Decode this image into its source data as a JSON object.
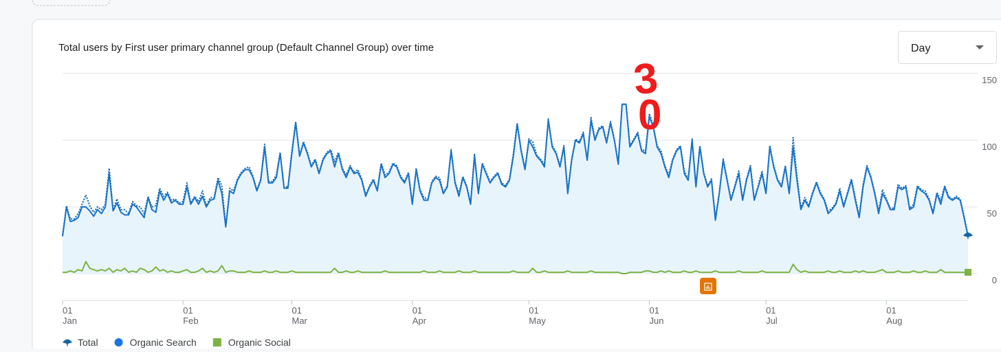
{
  "chart_data": {
    "type": "line",
    "title": "Total users by First user primary channel group (Default Channel Group) over time",
    "dropdown": "Day",
    "annotations": [
      "3",
      "0"
    ],
    "xlim": [
      0,
      233
    ],
    "ylim": [
      0,
      150
    ],
    "yticks": [
      0,
      50,
      100,
      150
    ],
    "grid": true,
    "xticks": [
      {
        "value": 0,
        "label": "01",
        "sublabel": "Jan"
      },
      {
        "value": 31,
        "label": "01",
        "sublabel": "Feb"
      },
      {
        "value": 59,
        "label": "01",
        "sublabel": "Mar"
      },
      {
        "value": 90,
        "label": "01",
        "sublabel": "Apr"
      },
      {
        "value": 120,
        "label": "01",
        "sublabel": "May"
      },
      {
        "value": 151,
        "label": "01",
        "sublabel": "Jun"
      },
      {
        "value": 181,
        "label": "01",
        "sublabel": "Jul"
      },
      {
        "value": 212,
        "label": "01",
        "sublabel": "Aug"
      }
    ],
    "x": [
      0,
      1,
      2,
      3,
      4,
      5,
      6,
      7,
      8,
      9,
      10,
      11,
      12,
      13,
      14,
      15,
      16,
      17,
      18,
      19,
      20,
      21,
      22,
      23,
      24,
      25,
      26,
      27,
      28,
      29,
      30,
      31,
      32,
      33,
      34,
      35,
      36,
      37,
      38,
      39,
      40,
      41,
      42,
      43,
      44,
      45,
      46,
      47,
      48,
      49,
      50,
      51,
      52,
      53,
      54,
      55,
      56,
      57,
      58,
      59,
      60,
      61,
      62,
      63,
      64,
      65,
      66,
      67,
      68,
      69,
      70,
      71,
      72,
      73,
      74,
      75,
      76,
      77,
      78,
      79,
      80,
      81,
      82,
      83,
      84,
      85,
      86,
      87,
      88,
      89,
      90,
      91,
      92,
      93,
      94,
      95,
      96,
      97,
      98,
      99,
      100,
      101,
      102,
      103,
      104,
      105,
      106,
      107,
      108,
      109,
      110,
      111,
      112,
      113,
      114,
      115,
      116,
      117,
      118,
      119,
      120,
      121,
      122,
      123,
      124,
      125,
      126,
      127,
      128,
      129,
      130,
      131,
      132,
      133,
      134,
      135,
      136,
      137,
      138,
      139,
      140,
      141,
      142,
      143,
      144,
      145,
      146,
      147,
      148,
      149,
      150,
      151,
      152,
      153,
      154,
      155,
      156,
      157,
      158,
      159,
      160,
      161,
      162,
      163,
      164,
      165,
      166,
      167,
      168,
      169,
      170,
      171,
      172,
      173,
      174,
      175,
      176,
      177,
      178,
      179,
      180,
      181,
      182,
      183,
      184,
      185,
      186,
      187,
      188,
      189,
      190,
      191,
      192,
      193,
      194,
      195,
      196,
      197,
      198,
      199,
      200,
      201,
      202,
      203,
      204,
      205,
      206,
      207,
      208,
      209,
      210,
      211,
      212,
      213,
      214,
      215,
      216,
      217,
      218,
      219,
      220,
      221,
      222,
      223,
      224,
      225,
      226,
      227,
      228,
      229,
      230,
      231,
      232,
      233
    ],
    "series": [
      {
        "name": "Total",
        "color": "#1565a8",
        "dash": true,
        "area": true,
        "values": [
          29,
          51,
          41,
          41,
          45,
          52,
          59,
          51,
          46,
          50,
          48,
          52,
          79,
          48,
          56,
          48,
          48,
          45,
          54,
          51,
          50,
          45,
          58,
          50,
          51,
          64,
          58,
          61,
          55,
          56,
          53,
          54,
          68,
          53,
          58,
          54,
          62,
          51,
          57,
          57,
          72,
          66,
          36,
          64,
          62,
          71,
          76,
          79,
          80,
          73,
          63,
          71,
          97,
          69,
          69,
          74,
          91,
          65,
          65,
          92,
          114,
          89,
          99,
          91,
          81,
          86,
          76,
          86,
          91,
          93,
          84,
          91,
          79,
          74,
          81,
          76,
          78,
          71,
          59,
          66,
          71,
          63,
          83,
          74,
          76,
          83,
          81,
          73,
          69,
          76,
          53,
          79,
          63,
          57,
          56,
          69,
          73,
          72,
          61,
          66,
          93,
          69,
          60,
          73,
          66,
          53,
          90,
          61,
          83,
          76,
          69,
          73,
          76,
          68,
          66,
          71,
          90,
          113,
          93,
          79,
          101,
          99,
          89,
          86,
          82,
          116,
          96,
          91,
          81,
          96,
          62,
          86,
          101,
          99,
          106,
          86,
          117,
          101,
          109,
          111,
          99,
          114,
          101,
          83,
          127,
          127,
          96,
          101,
          106,
          93,
          92,
          120,
          111,
          96,
          92,
          81,
          74,
          86,
          93,
          96,
          77,
          71,
          101,
          67,
          96,
          76,
          66,
          71,
          42,
          61,
          86,
          71,
          56,
          66,
          77,
          56,
          71,
          81,
          56,
          66,
          77,
          61,
          96,
          81,
          71,
          66,
          81,
          61,
          102,
          73,
          49,
          57,
          51,
          61,
          69,
          61,
          56,
          47,
          49,
          53,
          64,
          51,
          61,
          71,
          57,
          43,
          67,
          81,
          73,
          61,
          47,
          63,
          56,
          49,
          49,
          67,
          64,
          66,
          49,
          52,
          66,
          63,
          62,
          56,
          46,
          61,
          55,
          66,
          58,
          56,
          58,
          56,
          43,
          29
        ]
      },
      {
        "name": "Organic Search",
        "color": "#1a73c8",
        "dash": false,
        "area": false,
        "values": [
          28,
          50,
          39,
          40,
          42,
          50,
          50,
          47,
          43,
          48,
          45,
          50,
          75,
          47,
          53,
          46,
          44,
          44,
          52,
          50,
          46,
          42,
          57,
          48,
          46,
          62,
          55,
          60,
          53,
          55,
          52,
          52,
          65,
          52,
          57,
          52,
          58,
          50,
          55,
          56,
          70,
          60,
          35,
          62,
          60,
          70,
          75,
          78,
          78,
          72,
          62,
          70,
          95,
          68,
          68,
          72,
          90,
          64,
          64,
          90,
          113,
          88,
          98,
          90,
          80,
          85,
          75,
          85,
          90,
          92,
          80,
          90,
          78,
          72,
          80,
          75,
          76,
          70,
          58,
          65,
          70,
          62,
          82,
          72,
          75,
          82,
          80,
          72,
          68,
          75,
          52,
          78,
          62,
          55,
          55,
          68,
          72,
          70,
          60,
          65,
          92,
          68,
          58,
          72,
          65,
          52,
          88,
          60,
          82,
          75,
          68,
          72,
          75,
          67,
          65,
          70,
          88,
          112,
          92,
          78,
          100,
          95,
          88,
          85,
          80,
          115,
          95,
          90,
          80,
          95,
          60,
          85,
          100,
          98,
          105,
          85,
          115,
          100,
          108,
          110,
          98,
          113,
          100,
          82,
          127,
          127,
          95,
          100,
          105,
          92,
          90,
          118,
          110,
          95,
          90,
          80,
          72,
          85,
          92,
          95,
          75,
          70,
          100,
          65,
          95,
          75,
          65,
          70,
          40,
          60,
          85,
          70,
          55,
          65,
          75,
          55,
          70,
          80,
          55,
          65,
          75,
          60,
          95,
          80,
          70,
          65,
          80,
          60,
          95,
          70,
          48,
          55,
          50,
          60,
          68,
          60,
          55,
          45,
          48,
          52,
          62,
          50,
          60,
          70,
          55,
          42,
          65,
          80,
          72,
          60,
          45,
          60,
          55,
          48,
          48,
          65,
          63,
          65,
          48,
          50,
          65,
          62,
          60,
          55,
          45,
          60,
          52,
          65,
          57,
          55,
          57,
          55,
          42,
          28
        ]
      },
      {
        "name": "Organic Social",
        "color": "#7cb342",
        "dash": false,
        "area": false,
        "values": [
          1,
          1,
          2,
          1,
          3,
          2,
          9,
          4,
          3,
          2,
          3,
          2,
          4,
          1,
          3,
          2,
          4,
          1,
          2,
          1,
          4,
          3,
          1,
          2,
          5,
          2,
          3,
          1,
          2,
          1,
          1,
          2,
          3,
          1,
          1,
          2,
          4,
          1,
          2,
          1,
          2,
          6,
          1,
          2,
          2,
          1,
          1,
          1,
          2,
          1,
          1,
          1,
          2,
          1,
          1,
          2,
          1,
          1,
          1,
          2,
          1,
          1,
          1,
          1,
          1,
          1,
          1,
          1,
          1,
          1,
          4,
          1,
          1,
          2,
          1,
          1,
          2,
          1,
          1,
          1,
          1,
          1,
          1,
          2,
          1,
          1,
          1,
          1,
          1,
          1,
          1,
          1,
          1,
          2,
          1,
          1,
          1,
          2,
          1,
          1,
          1,
          1,
          2,
          1,
          1,
          1,
          2,
          1,
          1,
          1,
          1,
          1,
          1,
          1,
          1,
          1,
          2,
          1,
          1,
          1,
          1,
          4,
          1,
          1,
          2,
          1,
          1,
          1,
          1,
          1,
          2,
          1,
          1,
          1,
          1,
          1,
          2,
          1,
          1,
          1,
          1,
          1,
          1,
          1,
          0,
          0,
          1,
          1,
          1,
          1,
          2,
          2,
          1,
          1,
          2,
          1,
          2,
          1,
          1,
          1,
          2,
          1,
          1,
          2,
          1,
          1,
          1,
          1,
          2,
          1,
          1,
          1,
          1,
          1,
          2,
          1,
          1,
          1,
          1,
          1,
          2,
          1,
          1,
          1,
          1,
          1,
          1,
          1,
          7,
          3,
          1,
          2,
          1,
          1,
          1,
          1,
          1,
          2,
          1,
          1,
          2,
          1,
          1,
          1,
          2,
          1,
          2,
          1,
          1,
          1,
          2,
          3,
          1,
          1,
          1,
          2,
          1,
          1,
          1,
          2,
          1,
          1,
          2,
          1,
          1,
          1,
          3,
          1,
          1,
          1,
          1,
          1,
          1,
          1
        ]
      }
    ]
  }
}
